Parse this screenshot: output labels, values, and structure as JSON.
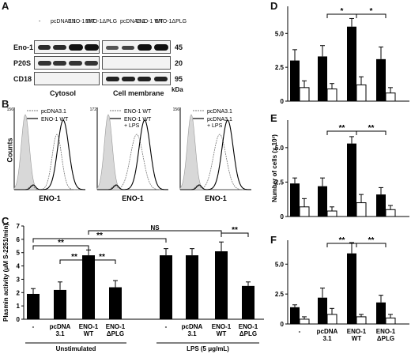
{
  "letters": {
    "a": "A",
    "b": "B",
    "c": "C",
    "d": "D",
    "e": "E",
    "f": "F"
  },
  "panel_a": {
    "lanes": [
      "-",
      "pcDNA3.1",
      "ENO-1 WT",
      "ENO-1ΔPLG"
    ],
    "rows": [
      "Eno-1",
      "P20S",
      "CD18"
    ],
    "mw": [
      "45",
      "20",
      "95"
    ],
    "kda": "kDa",
    "fractions": [
      "Cytosol",
      "Cell membrane"
    ]
  },
  "panel_b": {
    "ylabel": "Counts",
    "plots": [
      {
        "legend": [
          "pcDNA3.1",
          "ENO-1 WT"
        ],
        "xlabel": "ENO-1",
        "ymax": "156"
      },
      {
        "legend": [
          "ENO-1 WT",
          "ENO-1 WT + LPS"
        ],
        "xlabel": "ENO-1",
        "ymax": "172"
      },
      {
        "legend": [
          "pcDNA3.1",
          "pcDNA3.1 + LPS"
        ],
        "xlabel": "ENO-1",
        "ymax": "156"
      }
    ]
  },
  "panel_c_labels": {
    "unstim": "Unstimulated",
    "lps": "LPS (5 μg/mL)",
    "sig": [
      "**",
      "**",
      "**",
      "**",
      "NS",
      "**"
    ]
  },
  "panel_def": {
    "ylabel": "Number of cells (x 10³)",
    "xticks": [
      [
        "-"
      ],
      [
        "pcDNA",
        "3.1"
      ],
      [
        "ENO-1",
        "WT"
      ],
      [
        "ENO-1",
        "ΔPLG"
      ]
    ]
  },
  "chart_data": [
    {
      "type": "bar",
      "title": "",
      "ylabel": "Plasmin activity (μM S-2251/min)",
      "ylim": [
        0,
        7
      ],
      "yticks": [
        "0",
        "1",
        "2",
        "3",
        "4",
        "5",
        "6",
        "7"
      ],
      "categories": [
        "-",
        "pcDNA 3.1",
        "ENO-1 WT",
        "ENO-1 ΔPLG",
        "-",
        "pcDNA 3.1",
        "ENO-1 WT",
        "ENO-1 ΔPLG"
      ],
      "values": [
        1.9,
        2.2,
        4.8,
        2.4,
        4.8,
        4.8,
        5.1,
        2.5
      ],
      "errors": [
        0.4,
        0.6,
        0.4,
        0.5,
        0.5,
        0.5,
        0.7,
        0.3
      ]
    },
    {
      "type": "bar",
      "title": "",
      "ylim": [
        0,
        7
      ],
      "yticks": [
        "0",
        "2.5",
        "5.0"
      ],
      "categories": [
        "-",
        "pcDNA 3.1",
        "ENO-1 WT",
        "ENO-1 ΔPLG"
      ],
      "series": [
        {
          "values": [
            3.0,
            3.3,
            5.5,
            3.1
          ],
          "errors": [
            0.8,
            0.8,
            0.6,
            0.9
          ]
        },
        {
          "values": [
            1.0,
            0.9,
            1.2,
            0.6
          ],
          "errors": [
            0.5,
            0.4,
            0.6,
            0.4
          ]
        }
      ],
      "sig": [
        "*",
        "*"
      ]
    },
    {
      "type": "bar",
      "title": "",
      "ylim": [
        0,
        7
      ],
      "yticks": [
        "0",
        "2.5",
        "5.0"
      ],
      "categories": [
        "-",
        "pcDNA 3.1",
        "ENO-1 WT",
        "ENO-1 ΔPLG"
      ],
      "series": [
        {
          "values": [
            2.4,
            2.2,
            5.3,
            1.6
          ],
          "errors": [
            0.4,
            0.6,
            0.5,
            0.5
          ]
        },
        {
          "values": [
            0.7,
            0.4,
            1.0,
            0.5
          ],
          "errors": [
            0.6,
            0.3,
            0.6,
            0.3
          ]
        }
      ],
      "sig": [
        "**",
        "**"
      ]
    },
    {
      "type": "bar",
      "title": "",
      "ylim": [
        0,
        7
      ],
      "yticks": [
        "0",
        "2.5",
        "5.0"
      ],
      "categories": [
        "-",
        "pcDNA 3.1",
        "ENO-1 WT",
        "ENO-1 ΔPLG"
      ],
      "series": [
        {
          "values": [
            1.4,
            2.2,
            5.9,
            1.8
          ],
          "errors": [
            0.2,
            0.8,
            0.9,
            0.6
          ]
        },
        {
          "values": [
            0.4,
            0.8,
            0.6,
            0.5
          ],
          "errors": [
            0.2,
            0.5,
            0.2,
            0.3
          ]
        }
      ],
      "sig": [
        "**",
        "**"
      ]
    }
  ]
}
